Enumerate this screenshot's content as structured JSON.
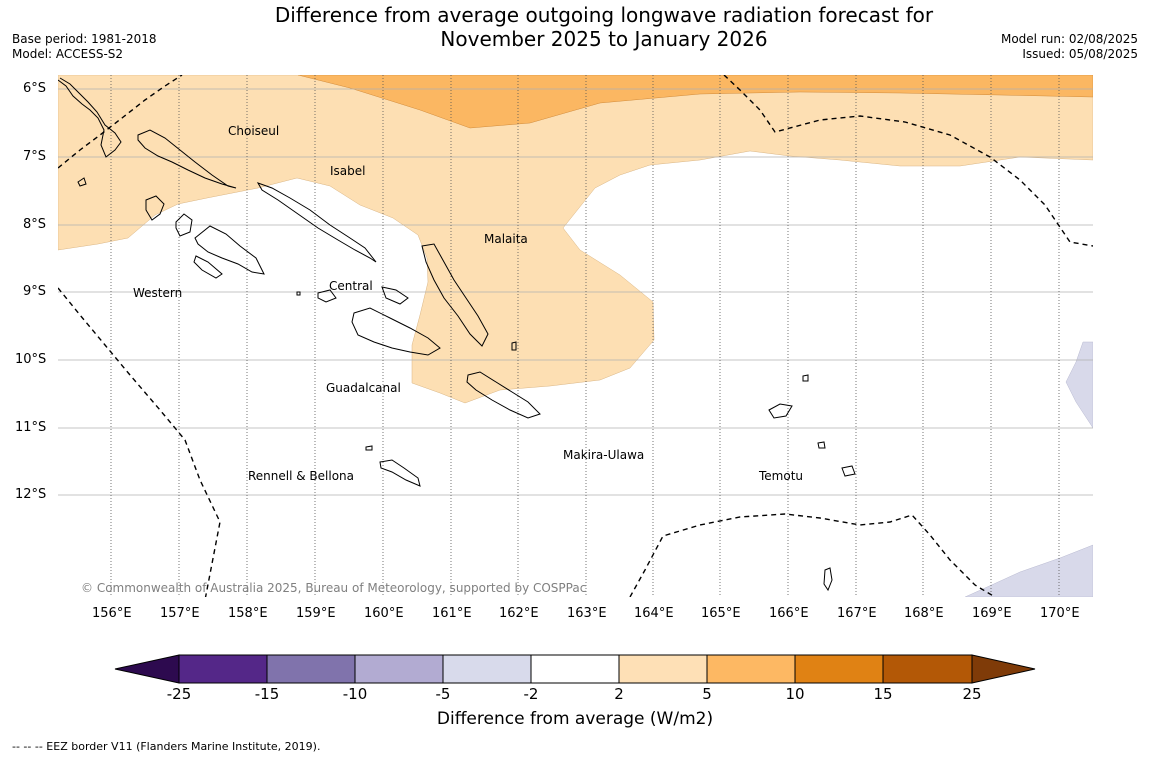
{
  "header": {
    "title_line1": "Difference from average outgoing longwave radiation forecast for",
    "title_line2": "November 2025 to January 2026",
    "base_period": "Base period: 1981-2018",
    "model": "Model: ACCESS-S2",
    "model_run": "Model run: 02/08/2025",
    "issued": "Issued: 05/08/2025"
  },
  "map": {
    "lat_labels": [
      "6°S",
      "7°S",
      "8°S",
      "9°S",
      "10°S",
      "11°S",
      "12°S"
    ],
    "lon_labels": [
      "156°E",
      "157°E",
      "158°E",
      "159°E",
      "160°E",
      "161°E",
      "162°E",
      "163°E",
      "164°E",
      "165°E",
      "166°E",
      "167°E",
      "168°E",
      "169°E",
      "170°E"
    ],
    "places": {
      "choiseul": "Choiseul",
      "isabel": "Isabel",
      "malaita": "Malaita",
      "central": "Central",
      "western": "Western",
      "guadalcanal": "Guadalcanal",
      "makira_ulawa": "Makira-Ulawa",
      "rennell_bellona": "Rennell & Bellona",
      "temotu": "Temotu"
    },
    "copyright": "© Commonwealth of Australia 2025, Bureau of Meteorology, supported by COSPPac",
    "fill_colors": {
      "band_2_5": "#fddfb3",
      "band_5_10": "#fbb762",
      "band_neg5_neg2": "#d8d9ea"
    }
  },
  "colorbar": {
    "ticks": [
      "-25",
      "-15",
      "-10",
      "-5",
      "-2",
      "2",
      "5",
      "10",
      "15",
      "25"
    ],
    "colors": [
      "#2d0a4f",
      "#542788",
      "#8073ac",
      "#b2abd2",
      "#d8daeb",
      "#ffffff",
      "#fee0b6",
      "#fdb863",
      "#e08214",
      "#b35806",
      "#7f3b08"
    ],
    "title": "Difference from average (W/m2)"
  },
  "footer": {
    "legend_text": "--  --  -- EEZ border V11 (Flanders Marine Institute, 2019)."
  }
}
